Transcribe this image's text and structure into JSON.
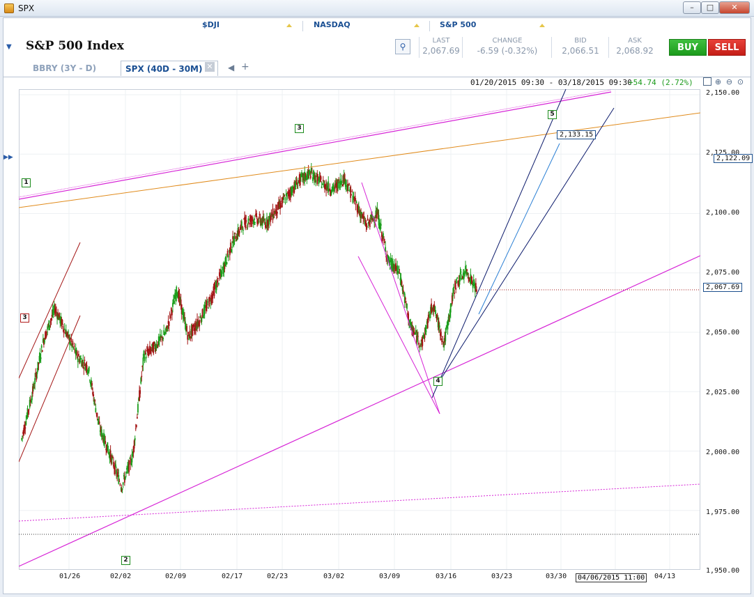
{
  "window": {
    "title": "SPX",
    "minimize": "–",
    "maximize": "□",
    "close": "✕"
  },
  "tickers": [
    "$DJI",
    "NASDAQ",
    "S&P 500"
  ],
  "header": {
    "title": "S&P 500 Index",
    "quote": {
      "last_label": "LAST",
      "last": "2,067.69",
      "change_label": "CHANGE",
      "change": "-6.59 (-0.32%)",
      "bid_label": "BID",
      "bid": "2,066.51",
      "ask_label": "ASK",
      "ask": "2,068.92"
    },
    "buy": "BUY",
    "sell": "SELL"
  },
  "tabs": [
    {
      "label": "BBRY (3Y - D)"
    },
    {
      "label": "SPX (40D - 30M)"
    }
  ],
  "tab_close": "✕",
  "tab_prev": "◀",
  "tab_add": "+",
  "chart_header": {
    "range": "01/20/2015 09:30 - 03/18/2015 09:30",
    "change": "+54.74 (2.72%)"
  },
  "y_axis": [
    "2,150.00",
    "2,125.00",
    "2,100.00",
    "2,075.00",
    "2,050.00",
    "2,025.00",
    "2,000.00",
    "1,975.00",
    "1,950.00"
  ],
  "x_axis": [
    "01/26",
    "02/02",
    "02/09",
    "02/17",
    "02/23",
    "03/02",
    "03/09",
    "03/16",
    "03/23",
    "03/30",
    "04/13"
  ],
  "price_labels": {
    "current": "2,067.69",
    "target": "2,133.15",
    "side": "2,122.09"
  },
  "cursor_date": "04/06/2015 11:00",
  "waves": [
    "1",
    "2",
    "3",
    "3",
    "4",
    "5"
  ],
  "colors": {
    "up": "#1b9e1b",
    "down": "#a31515",
    "magenta": "#d622d6",
    "orange": "#e08a1a",
    "blue": "#2a7fd4",
    "navy": "#0b1a6b"
  },
  "chart_data": {
    "type": "candlestick",
    "symbol": "SPX",
    "interval": "30M",
    "period": "40D",
    "range_start": "01/20/2015 09:30",
    "range_end": "03/18/2015 09:30",
    "change": "+54.74 (2.72%)",
    "ylim": [
      1950,
      2150
    ],
    "y_ticks": [
      1950,
      1975,
      2000,
      2025,
      2050,
      2075,
      2100,
      2125,
      2150
    ],
    "x_ticks": [
      "01/26",
      "02/02",
      "02/09",
      "02/17",
      "02/23",
      "03/02",
      "03/09",
      "03/16",
      "03/23",
      "03/30",
      "04/13"
    ],
    "last_price": 2067.69,
    "target_price": 2133.15,
    "marker_price": 2122.09,
    "path": [
      [
        "01/20",
        2005
      ],
      [
        "01/21",
        2025
      ],
      [
        "01/22",
        2047
      ],
      [
        "01/23",
        2060
      ],
      [
        "01/26",
        2050
      ],
      [
        "01/27",
        2040
      ],
      [
        "01/28",
        2035
      ],
      [
        "01/29",
        2010
      ],
      [
        "01/30",
        1998
      ],
      [
        "02/02",
        1985
      ],
      [
        "02/02",
        1998
      ],
      [
        "02/03",
        2040
      ],
      [
        "02/04",
        2044
      ],
      [
        "02/05",
        2050
      ],
      [
        "02/06",
        2068
      ],
      [
        "02/09",
        2048
      ],
      [
        "02/10",
        2055
      ],
      [
        "02/11",
        2064
      ],
      [
        "02/12",
        2075
      ],
      [
        "02/13",
        2088
      ],
      [
        "02/17",
        2096
      ],
      [
        "02/18",
        2098
      ],
      [
        "02/19",
        2096
      ],
      [
        "02/20",
        2102
      ],
      [
        "02/23",
        2108
      ],
      [
        "02/24",
        2114
      ],
      [
        "02/25",
        2117
      ],
      [
        "02/26",
        2113
      ],
      [
        "02/27",
        2110
      ],
      [
        "03/02",
        2115
      ],
      [
        "03/03",
        2105
      ],
      [
        "03/04",
        2095
      ],
      [
        "03/05",
        2100
      ],
      [
        "03/06",
        2080
      ],
      [
        "03/09",
        2075
      ],
      [
        "03/10",
        2052
      ],
      [
        "03/11",
        2045
      ],
      [
        "03/12",
        2062
      ],
      [
        "03/13",
        2045
      ],
      [
        "03/16",
        2070
      ],
      [
        "03/17",
        2076
      ],
      [
        "03/18",
        2067.69
      ]
    ]
  }
}
